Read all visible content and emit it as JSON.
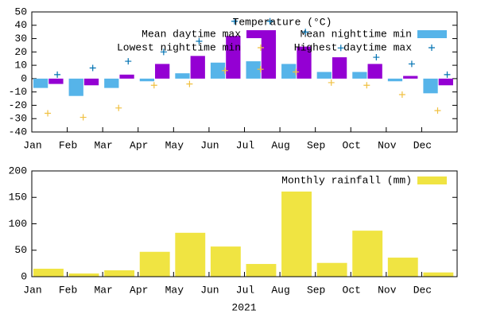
{
  "chart_data": [
    {
      "type": "bar",
      "legend_title": "Temperature (°C)",
      "categories": [
        "Jan",
        "Feb",
        "Mar",
        "Apr",
        "May",
        "Jun",
        "Jul",
        "Aug",
        "Sep",
        "Oct",
        "Nov",
        "Dec"
      ],
      "series": [
        {
          "name": "Mean nighttime min",
          "mark": "bar",
          "color": "#56b4e9",
          "values": [
            -7,
            -13,
            -7,
            -2,
            4,
            12,
            13,
            11,
            5,
            5,
            -2,
            -11
          ]
        },
        {
          "name": "Mean daytime max",
          "mark": "bar",
          "color": "#9400d3",
          "values": [
            -4,
            -5,
            3,
            11,
            17,
            32,
            33,
            24,
            16,
            11,
            2,
            -5
          ]
        },
        {
          "name": "Highest daytime max",
          "mark": "cross",
          "color": "#0072b2",
          "values": [
            3,
            8,
            13,
            20,
            28,
            43,
            43,
            35,
            23,
            16,
            11,
            3
          ]
        },
        {
          "name": "Lowest nighttime min",
          "mark": "cross",
          "color": "#f0c040",
          "values": [
            -26,
            -29,
            -22,
            -5,
            -4,
            6,
            7,
            5,
            -3,
            -5,
            -12,
            -24
          ]
        }
      ],
      "ylim": [
        -40,
        50
      ],
      "yticks": [
        -40,
        -30,
        -20,
        -10,
        0,
        10,
        20,
        30,
        40,
        50
      ]
    },
    {
      "type": "bar",
      "categories": [
        "Jan",
        "Feb",
        "Mar",
        "Apr",
        "May",
        "Jun",
        "Jul",
        "Aug",
        "Sep",
        "Oct",
        "Nov",
        "Dec"
      ],
      "xlabel": "2021",
      "series": [
        {
          "name": "Monthly rainfall (mm)",
          "mark": "bar",
          "color": "#f0e442",
          "values": [
            15,
            6,
            12,
            47,
            83,
            57,
            24,
            161,
            26,
            87,
            36,
            8
          ]
        }
      ],
      "ylim": [
        0,
        200
      ],
      "yticks": [
        0,
        50,
        100,
        150,
        200
      ]
    }
  ]
}
